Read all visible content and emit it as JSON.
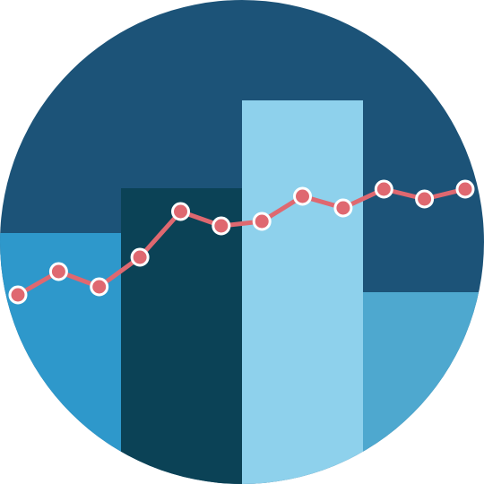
{
  "icon": {
    "name": "bar-line-chart-icon",
    "colors": {
      "background": "#1c5378",
      "bar_1": "#2e98cb",
      "bar_2": "#0b4256",
      "bar_3": "#8ed1ec",
      "bar_4": "#4ea8cf",
      "line": "#df6870",
      "marker_fill": "#df6870",
      "marker_stroke": "#ffffff"
    }
  },
  "chart_data": {
    "type": "bar",
    "categories": [
      "1",
      "2",
      "3",
      "4"
    ],
    "values": [
      280,
      330,
      428,
      214
    ],
    "ylim": [
      0,
      540
    ],
    "overlay_line": {
      "type": "line",
      "x": [
        1,
        2,
        3,
        4,
        5,
        6,
        7,
        8,
        9,
        10,
        11,
        12
      ],
      "values": [
        211,
        237,
        220,
        253,
        304,
        288,
        293,
        321,
        308,
        329,
        318,
        329
      ]
    }
  }
}
